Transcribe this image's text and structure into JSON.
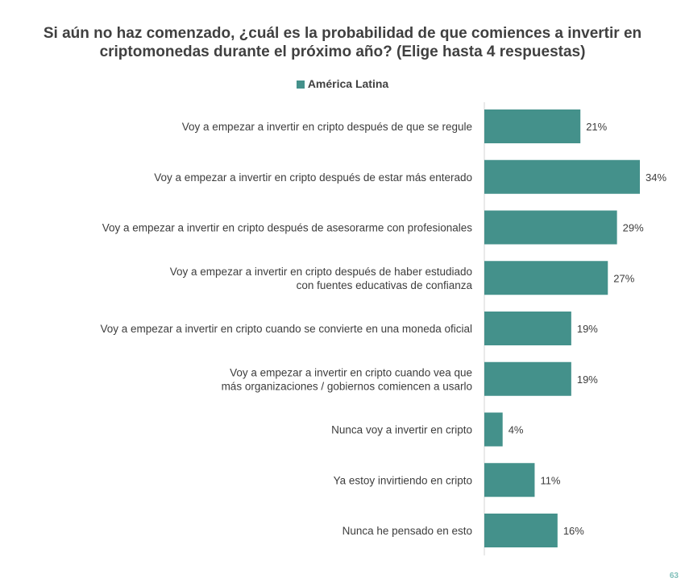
{
  "chart_data": {
    "type": "bar",
    "orientation": "horizontal",
    "title_lines": [
      "Si aún no haz comenzado, ¿cuál es la probabilidad de que comiences a invertir en",
      "criptomonedas durante el próximo año? (Elige hasta 4 respuestas)"
    ],
    "legend": [
      "América Latina"
    ],
    "categories": [
      [
        "Voy a empezar a invertir en cripto después de que se regule"
      ],
      [
        "Voy a empezar a invertir en cripto después de estar más enterado"
      ],
      [
        "Voy a empezar a invertir en cripto después de asesorarme con profesionales"
      ],
      [
        "Voy a empezar a invertir en cripto después de haber estudiado",
        "con fuentes educativas de confianza"
      ],
      [
        "Voy a empezar a invertir en cripto cuando se convierte en una moneda oficial"
      ],
      [
        "Voy a empezar a invertir en cripto cuando vea que",
        "más organizaciones / gobiernos comiencen a usarlo"
      ],
      [
        "Nunca voy a invertir en cripto"
      ],
      [
        "Ya estoy invirtiendo en cripto"
      ],
      [
        "Nunca he pensado en esto"
      ]
    ],
    "series": [
      {
        "name": "América Latina",
        "values": [
          21,
          34,
          29,
          27,
          19,
          19,
          4,
          11,
          16
        ],
        "labels": [
          "21%",
          "34%",
          "29%",
          "27%",
          "19%",
          "19%",
          "4%",
          "11%",
          "16%"
        ]
      }
    ],
    "xlim": [
      0,
      40
    ],
    "grid": false
  },
  "colors": {
    "bar": "#44918b",
    "axis": "#d4d4d4",
    "text": "#3d3d3d",
    "page_number": "#7fbfb9"
  },
  "page_number": "63"
}
